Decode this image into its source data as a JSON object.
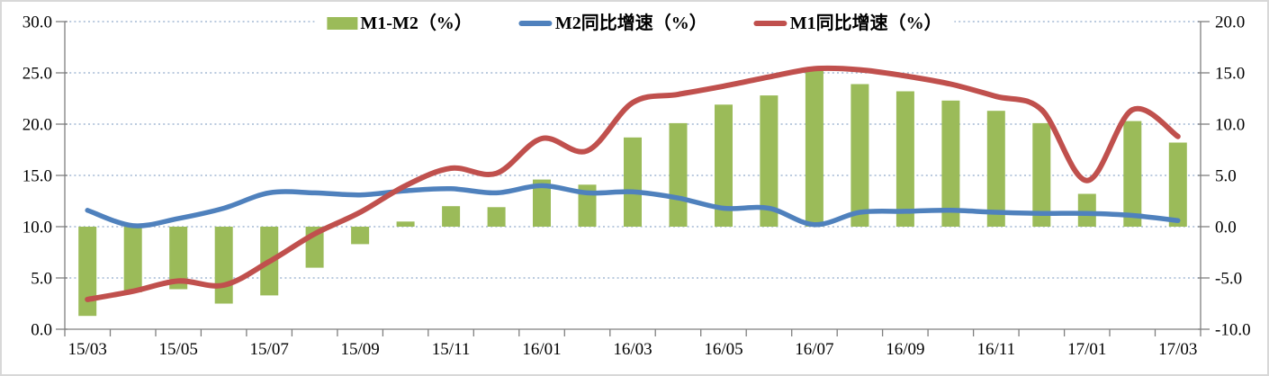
{
  "colors": {
    "bar_green": "#9BBB59",
    "line_blue": "#4F81BD",
    "line_red": "#C0504D",
    "gridline": "#A3B8D4",
    "axis": "#7F7F7F",
    "tick_text": "#000000",
    "frame_border": "#D8D8D8"
  },
  "legend": {
    "items": [
      {
        "label": "M1-M2（%）",
        "type": "bar",
        "color": "#9BBB59"
      },
      {
        "label": "M2同比增速（%）",
        "type": "line",
        "color": "#4F81BD"
      },
      {
        "label": "M1同比增速（%）",
        "type": "line",
        "color": "#C0504D"
      }
    ]
  },
  "chart_data": {
    "type": "bar+line combo",
    "grid": "horizontal dotted",
    "legend_position": "top-center",
    "categories": [
      "15/03",
      "15/04",
      "15/05",
      "15/06",
      "15/07",
      "15/08",
      "15/09",
      "15/10",
      "15/11",
      "15/12",
      "16/01",
      "16/02",
      "16/03",
      "16/04",
      "16/05",
      "16/06",
      "16/07",
      "16/08",
      "16/09",
      "16/10",
      "16/11",
      "16/12",
      "17/01",
      "17/02",
      "17/03"
    ],
    "x_tick_labels": [
      "15/03",
      "15/05",
      "15/07",
      "15/09",
      "15/11",
      "16/01",
      "16/03",
      "16/05",
      "16/07",
      "16/09",
      "16/11",
      "17/01",
      "17/03"
    ],
    "x_label_every": 2,
    "left_axis": {
      "min": 0,
      "max": 30,
      "step": 5,
      "labels_top_to_bottom": [
        "30.0",
        "25.0",
        "20.0",
        "15.0",
        "10.0",
        "5.0",
        "0.0"
      ]
    },
    "right_axis": {
      "min": -10,
      "max": 20,
      "step": 5,
      "labels_top_to_bottom": [
        "20.0",
        "15.0",
        "10.0",
        "5.0",
        "0.0",
        "-5.0",
        "-10.0"
      ]
    },
    "series": [
      {
        "name": "M1-M2（%）",
        "type": "bar",
        "axis": "right",
        "color": "#9BBB59",
        "values": [
          -8.7,
          -6.4,
          -6.1,
          -7.5,
          -6.7,
          -4.0,
          -1.7,
          0.5,
          2.0,
          1.9,
          4.6,
          4.1,
          8.7,
          10.1,
          11.9,
          12.8,
          15.2,
          13.9,
          13.2,
          12.3,
          11.3,
          10.1,
          3.2,
          10.3,
          8.2
        ]
      },
      {
        "name": "M2同比增速（%）",
        "type": "line",
        "axis": "left",
        "color": "#4F81BD",
        "values": [
          11.6,
          10.1,
          10.8,
          11.8,
          13.3,
          13.3,
          13.1,
          13.5,
          13.7,
          13.3,
          14.0,
          13.3,
          13.4,
          12.8,
          11.8,
          11.8,
          10.2,
          11.4,
          11.5,
          11.6,
          11.4,
          11.3,
          11.3,
          11.1,
          10.6
        ]
      },
      {
        "name": "M1同比增速（%）",
        "type": "line",
        "axis": "left",
        "color": "#C0504D",
        "values": [
          2.9,
          3.7,
          4.7,
          4.3,
          6.6,
          9.3,
          11.4,
          14.0,
          15.7,
          15.2,
          18.6,
          17.4,
          22.1,
          22.9,
          23.7,
          24.6,
          25.4,
          25.3,
          24.7,
          23.9,
          22.7,
          21.4,
          14.5,
          21.4,
          18.8
        ]
      }
    ]
  }
}
